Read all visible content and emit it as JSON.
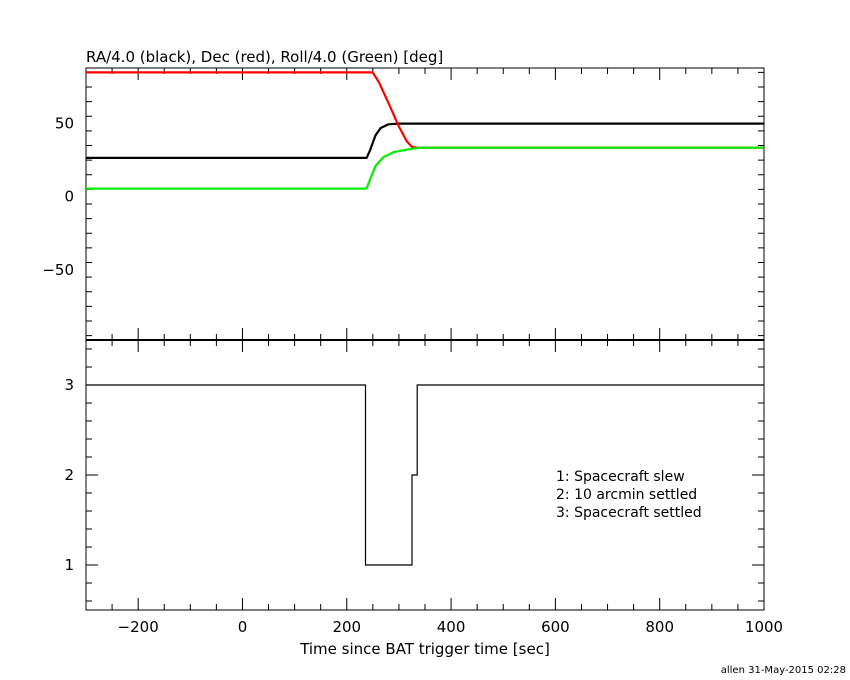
{
  "chart_data": [
    {
      "type": "line",
      "title": "RA/4.0 (black), Dec (red), Roll/4.0 (Green) [deg]",
      "xlim": [
        -300,
        1000
      ],
      "ylim": [
        -98,
        88
      ],
      "yticks": [
        -50,
        0,
        50
      ],
      "series": [
        {
          "color": "#000000",
          "x": [
            -300,
            238,
            245,
            255,
            265,
            280,
            300,
            340,
            400,
            600,
            800,
            1000
          ],
          "y": [
            26.5,
            26.5,
            32,
            42,
            47,
            49.5,
            50,
            50,
            50,
            50,
            50,
            50
          ]
        },
        {
          "color": "#ff0000",
          "x": [
            -300,
            250,
            262,
            280,
            300,
            315,
            325,
            335,
            400,
            600,
            800,
            1000
          ],
          "y": [
            85,
            85,
            78,
            64,
            48,
            38,
            34,
            33.5,
            33.5,
            33.5,
            33.5,
            33.5
          ]
        },
        {
          "color": "#00ee00",
          "x": [
            -300,
            238,
            245,
            255,
            270,
            290,
            320,
            340,
            400,
            600,
            800,
            1000
          ],
          "y": [
            5.5,
            5.5,
            12,
            21,
            27,
            30.5,
            32.5,
            33.5,
            33.5,
            33.5,
            33.5,
            33.5
          ]
        }
      ]
    },
    {
      "type": "line",
      "xlabel": "Time since BAT trigger time [sec]",
      "xlim": [
        -300,
        1000
      ],
      "ylim": [
        0.5,
        3.5
      ],
      "yticks": [
        1,
        2,
        3
      ],
      "xticks": [
        -200,
        0,
        200,
        400,
        600,
        800,
        1000
      ],
      "series": [
        {
          "color": "#000000",
          "step": true,
          "x": [
            -300,
            236,
            236,
            325,
            325,
            335,
            335,
            1000
          ],
          "y": [
            3,
            3,
            1,
            1,
            2,
            2,
            3,
            3
          ]
        }
      ],
      "annotations": [
        "1: Spacecraft slew",
        "2: 10 arcmin settled",
        "3: Spacecraft settled"
      ]
    }
  ],
  "footer": "allen 31-May-2015 02:28"
}
